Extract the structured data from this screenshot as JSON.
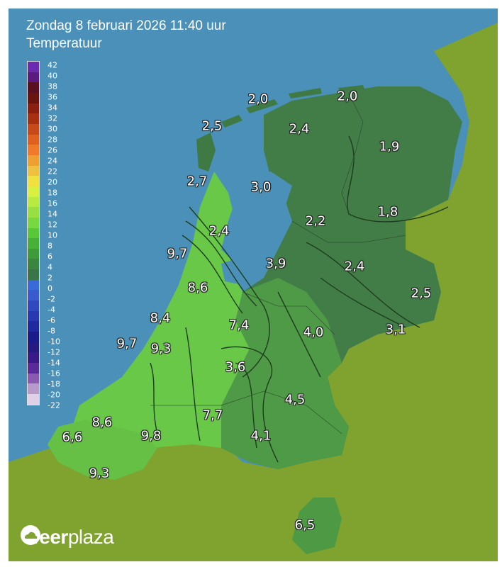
{
  "header": {
    "datetime": "Zondag 8 februari 2026 11:40 uur",
    "subtitle": "Temperatuur"
  },
  "legend": {
    "ticks": [
      "42",
      "40",
      "38",
      "36",
      "34",
      "32",
      "30",
      "28",
      "26",
      "24",
      "22",
      "20",
      "18",
      "16",
      "14",
      "12",
      "10",
      "8",
      "6",
      "4",
      "2",
      "0",
      "-2",
      "-4",
      "-6",
      "-8",
      "-10",
      "-12",
      "-14",
      "-16",
      "-18",
      "-20",
      "-22"
    ]
  },
  "temperatures": [
    {
      "label": "2,0"
    },
    {
      "label": "2,0"
    },
    {
      "label": "2,5"
    },
    {
      "label": "2,4"
    },
    {
      "label": "1,9"
    },
    {
      "label": "2,7"
    },
    {
      "label": "3,0"
    },
    {
      "label": "2,2"
    },
    {
      "label": "1,8"
    },
    {
      "label": "2,4"
    },
    {
      "label": "9,7"
    },
    {
      "label": "3,9"
    },
    {
      "label": "2,4"
    },
    {
      "label": "8,6"
    },
    {
      "label": "2,5"
    },
    {
      "label": "8,4"
    },
    {
      "label": "7,4"
    },
    {
      "label": "4,0"
    },
    {
      "label": "3,1"
    },
    {
      "label": "9,7"
    },
    {
      "label": "9,3"
    },
    {
      "label": "3,6"
    },
    {
      "label": "4,5"
    },
    {
      "label": "8,6"
    },
    {
      "label": "7,7"
    },
    {
      "label": "6,6"
    },
    {
      "label": "9,8"
    },
    {
      "label": "4,1"
    },
    {
      "label": "9,3"
    },
    {
      "label": "6,5"
    }
  ],
  "colors": {
    "sea": "#4a90b8",
    "land_outside": "#7fa32e",
    "nl_warm": "#6fd048",
    "nl_mid": "#4f9a43",
    "nl_cool": "#3f7a45"
  },
  "logo": {
    "brand_bold": "weer",
    "brand_rest": "plaza"
  }
}
